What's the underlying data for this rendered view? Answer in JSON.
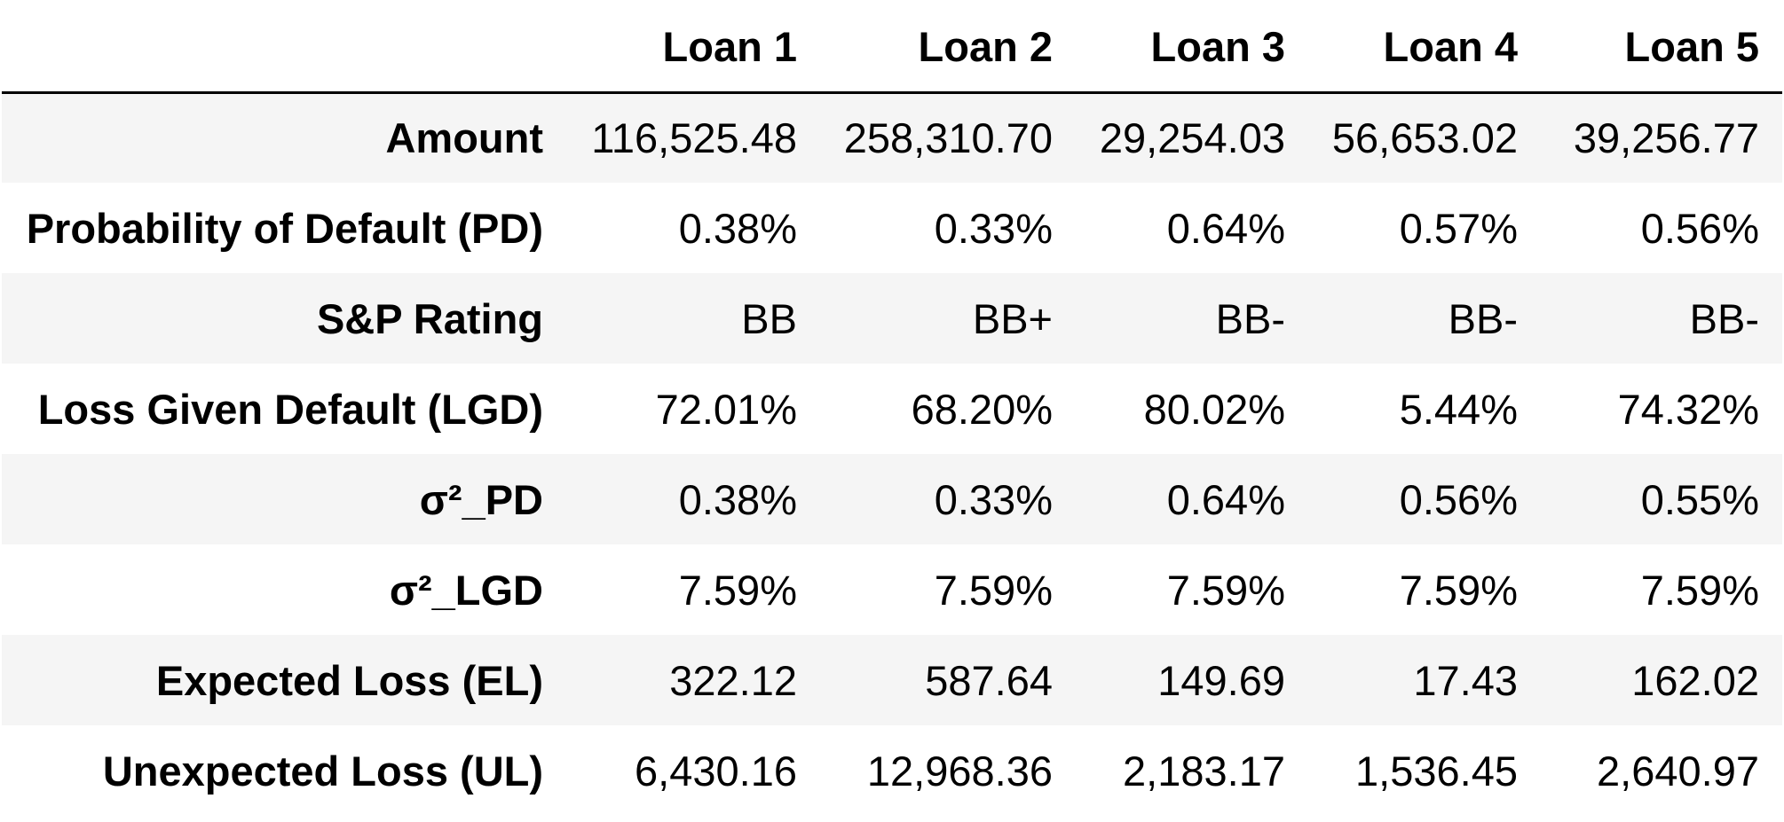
{
  "table": {
    "columns": [
      "",
      "Loan 1",
      "Loan 2",
      "Loan 3",
      "Loan 4",
      "Loan 5"
    ],
    "rows": [
      {
        "label": "Amount",
        "values": [
          "116,525.48",
          "258,310.70",
          "29,254.03",
          "56,653.02",
          "39,256.77"
        ]
      },
      {
        "label": "Probability of Default (PD)",
        "values": [
          "0.38%",
          "0.33%",
          "0.64%",
          "0.57%",
          "0.56%"
        ]
      },
      {
        "label": "S&P Rating",
        "values": [
          "BB",
          "BB+",
          "BB-",
          "BB-",
          "BB-"
        ]
      },
      {
        "label": "Loss Given Default (LGD)",
        "values": [
          "72.01%",
          "68.20%",
          "80.02%",
          "5.44%",
          "74.32%"
        ]
      },
      {
        "label": "σ²_PD",
        "values": [
          "0.38%",
          "0.33%",
          "0.64%",
          "0.56%",
          "0.55%"
        ]
      },
      {
        "label": "σ²_LGD",
        "values": [
          "7.59%",
          "7.59%",
          "7.59%",
          "7.59%",
          "7.59%"
        ]
      },
      {
        "label": "Expected Loss (EL)",
        "values": [
          "322.12",
          "587.64",
          "149.69",
          "17.43",
          "162.02"
        ]
      },
      {
        "label": "Unexpected Loss (UL)",
        "values": [
          "6,430.16",
          "12,968.36",
          "2,183.17",
          "1,536.45",
          "2,640.97"
        ]
      }
    ]
  },
  "colors": {
    "stripe": "#f5f5f5",
    "background": "#ffffff",
    "text": "#000000",
    "header_rule": "#000000"
  }
}
